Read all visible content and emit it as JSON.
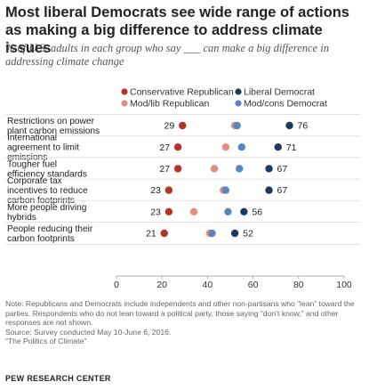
{
  "title": "Most liberal Democrats see wide range of actions as making a big difference to address climate issues",
  "subtitle": "% of U.S. adults in each group who say ___ can make a big difference in addressing climate change",
  "colors": {
    "conservative_republican": "#b5322b",
    "mod_lib_republican": "#e38c7f",
    "liberal_democrat": "#1f3a5f",
    "mod_cons_democrat": "#5a86bf",
    "axis": "#999999"
  },
  "chart_data": {
    "type": "scatter",
    "categories": [
      "Restrictions on power plant carbon emissions",
      "International agreement to limit emissions",
      "Tougher fuel efficiency standards",
      "Corporate tax incentives to reduce carbon footprints",
      "More people driving hybrids",
      "People reducing their carbon footprints"
    ],
    "series": [
      {
        "name": "Conservative Republican",
        "values": [
          29,
          27,
          27,
          23,
          23,
          21
        ],
        "labeled": true
      },
      {
        "name": "Mod/lib Republican",
        "values": [
          52,
          48,
          43,
          47,
          34,
          41
        ],
        "labeled": false
      },
      {
        "name": "Liberal Democrat",
        "values": [
          76,
          71,
          67,
          67,
          56,
          52
        ],
        "labeled": true
      },
      {
        "name": "Mod/cons Democrat",
        "values": [
          53,
          55,
          54,
          48,
          49,
          42
        ],
        "labeled": false
      }
    ],
    "xlim": [
      0,
      100
    ],
    "xticks": [
      "0",
      "20",
      "40",
      "60",
      "80",
      "100"
    ],
    "legend_position": "top"
  },
  "notes": {
    "note": "Note: Republicans and Democrats include independents and other non-partisans who “lean” toward the parties. Respondents who do not lean toward a political party, those saying “don’t know,” and other responses are not shown.",
    "source": "Source: Survey conducted May 10-June 6, 2016.",
    "report": "“The Politics of Climate”"
  },
  "brand": "PEW RESEARCH CENTER"
}
